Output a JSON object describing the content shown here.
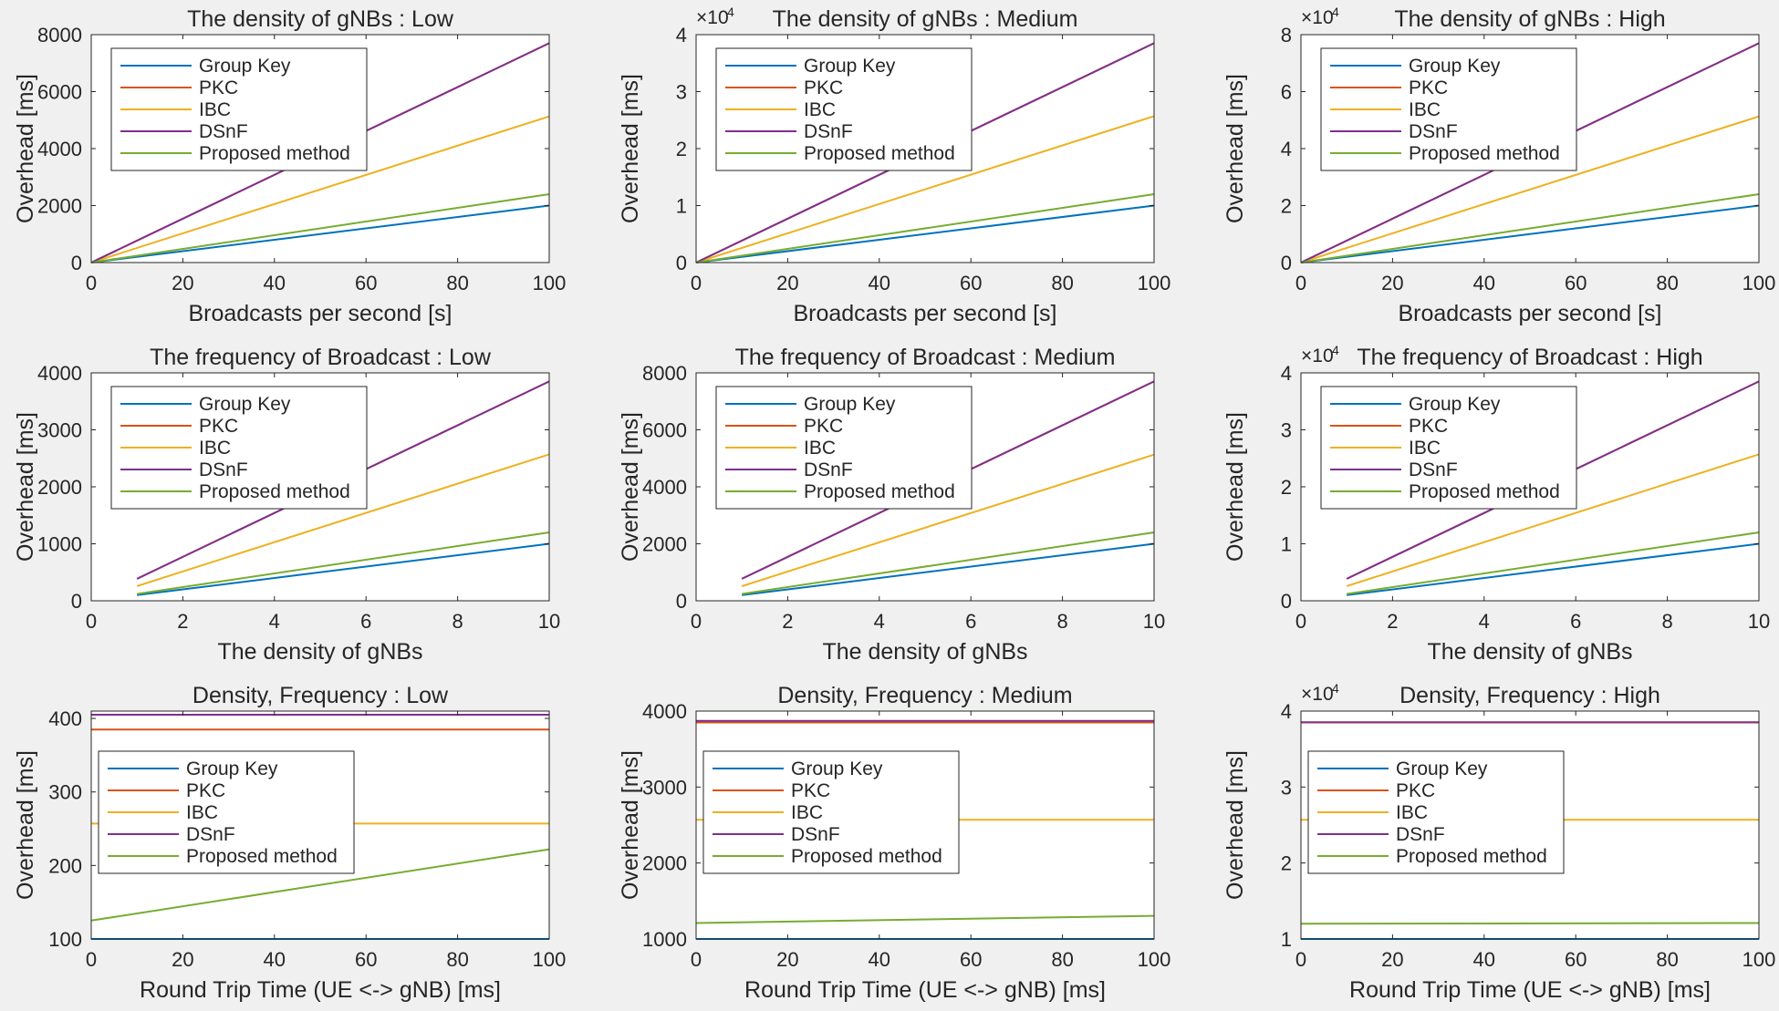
{
  "chart_data": [
    {
      "type": "line",
      "title": "The density of gNBs : Low",
      "xlabel": "Broadcasts per second [s]",
      "ylabel": "Overhead [ms]",
      "xlim": [
        0,
        100
      ],
      "ylim": [
        0,
        8000
      ],
      "xticks": [
        0,
        20,
        40,
        60,
        80,
        100
      ],
      "yticks": [
        0,
        2000,
        4000,
        6000,
        8000
      ],
      "ytick_labels": [
        "0",
        "2000",
        "4000",
        "6000",
        "8000"
      ],
      "multiplier": "",
      "legend": "top-left",
      "series": [
        {
          "name": "Group Key",
          "color": "#0072BD",
          "x": [
            0,
            100
          ],
          "y": [
            0,
            2000
          ]
        },
        {
          "name": "PKC",
          "color": "#D95319",
          "x": [
            0,
            100
          ],
          "y": [
            0,
            7700
          ]
        },
        {
          "name": "IBC",
          "color": "#EDB120",
          "x": [
            0,
            100
          ],
          "y": [
            0,
            5130
          ]
        },
        {
          "name": "DSnF",
          "color": "#7E2F8E",
          "x": [
            0,
            100
          ],
          "y": [
            0,
            7700
          ]
        },
        {
          "name": "Proposed method",
          "color": "#77AC30",
          "x": [
            0,
            100
          ],
          "y": [
            0,
            2400
          ]
        }
      ]
    },
    {
      "type": "line",
      "title": "The density of gNBs : Medium",
      "xlabel": "Broadcasts per second [s]",
      "ylabel": "Overhead [ms]",
      "xlim": [
        0,
        100
      ],
      "ylim": [
        0,
        40000
      ],
      "xticks": [
        0,
        20,
        40,
        60,
        80,
        100
      ],
      "yticks": [
        0,
        10000,
        20000,
        30000,
        40000
      ],
      "ytick_labels": [
        "0",
        "1",
        "2",
        "3",
        "4"
      ],
      "multiplier": "×10",
      "multiplier_exp": "4",
      "legend": "top-left",
      "series": [
        {
          "name": "Group Key",
          "color": "#0072BD",
          "x": [
            0,
            100
          ],
          "y": [
            0,
            10000
          ]
        },
        {
          "name": "PKC",
          "color": "#D95319",
          "x": [
            0,
            100
          ],
          "y": [
            0,
            38500
          ]
        },
        {
          "name": "IBC",
          "color": "#EDB120",
          "x": [
            0,
            100
          ],
          "y": [
            0,
            25700
          ]
        },
        {
          "name": "DSnF",
          "color": "#7E2F8E",
          "x": [
            0,
            100
          ],
          "y": [
            0,
            38500
          ]
        },
        {
          "name": "Proposed method",
          "color": "#77AC30",
          "x": [
            0,
            100
          ],
          "y": [
            0,
            12000
          ]
        }
      ]
    },
    {
      "type": "line",
      "title": "The density of gNBs : High",
      "xlabel": "Broadcasts per second [s]",
      "ylabel": "Overhead [ms]",
      "xlim": [
        0,
        100
      ],
      "ylim": [
        0,
        80000
      ],
      "xticks": [
        0,
        20,
        40,
        60,
        80,
        100
      ],
      "yticks": [
        0,
        20000,
        40000,
        60000,
        80000
      ],
      "ytick_labels": [
        "0",
        "2",
        "4",
        "6",
        "8"
      ],
      "multiplier": "×10",
      "multiplier_exp": "4",
      "legend": "top-left",
      "series": [
        {
          "name": "Group Key",
          "color": "#0072BD",
          "x": [
            0,
            100
          ],
          "y": [
            0,
            20000
          ]
        },
        {
          "name": "PKC",
          "color": "#D95319",
          "x": [
            0,
            100
          ],
          "y": [
            0,
            77000
          ]
        },
        {
          "name": "IBC",
          "color": "#EDB120",
          "x": [
            0,
            100
          ],
          "y": [
            0,
            51300
          ]
        },
        {
          "name": "DSnF",
          "color": "#7E2F8E",
          "x": [
            0,
            100
          ],
          "y": [
            0,
            77000
          ]
        },
        {
          "name": "Proposed method",
          "color": "#77AC30",
          "x": [
            0,
            100
          ],
          "y": [
            0,
            24000
          ]
        }
      ]
    },
    {
      "type": "line",
      "title": "The frequency of Broadcast : Low",
      "xlabel": "The density of gNBs",
      "ylabel": "Overhead [ms]",
      "xlim": [
        0,
        10
      ],
      "ylim": [
        0,
        4000
      ],
      "xticks": [
        0,
        2,
        4,
        6,
        8,
        10
      ],
      "yticks": [
        0,
        1000,
        2000,
        3000,
        4000
      ],
      "ytick_labels": [
        "0",
        "1000",
        "2000",
        "3000",
        "4000"
      ],
      "multiplier": "",
      "legend": "top-left",
      "series": [
        {
          "name": "Group Key",
          "color": "#0072BD",
          "x": [
            1,
            10
          ],
          "y": [
            100,
            1000
          ]
        },
        {
          "name": "PKC",
          "color": "#D95319",
          "x": [
            1,
            10
          ],
          "y": [
            385,
            3850
          ]
        },
        {
          "name": "IBC",
          "color": "#EDB120",
          "x": [
            1,
            10
          ],
          "y": [
            257,
            2570
          ]
        },
        {
          "name": "DSnF",
          "color": "#7E2F8E",
          "x": [
            1,
            10
          ],
          "y": [
            385,
            3850
          ]
        },
        {
          "name": "Proposed method",
          "color": "#77AC30",
          "x": [
            1,
            10
          ],
          "y": [
            120,
            1200
          ]
        }
      ]
    },
    {
      "type": "line",
      "title": "The frequency of Broadcast : Medium",
      "xlabel": "The density of gNBs",
      "ylabel": "Overhead [ms]",
      "xlim": [
        0,
        10
      ],
      "ylim": [
        0,
        8000
      ],
      "xticks": [
        0,
        2,
        4,
        6,
        8,
        10
      ],
      "yticks": [
        0,
        2000,
        4000,
        6000,
        8000
      ],
      "ytick_labels": [
        "0",
        "2000",
        "4000",
        "6000",
        "8000"
      ],
      "multiplier": "",
      "legend": "top-left",
      "series": [
        {
          "name": "Group Key",
          "color": "#0072BD",
          "x": [
            1,
            10
          ],
          "y": [
            200,
            2000
          ]
        },
        {
          "name": "PKC",
          "color": "#D95319",
          "x": [
            1,
            10
          ],
          "y": [
            770,
            7700
          ]
        },
        {
          "name": "IBC",
          "color": "#EDB120",
          "x": [
            1,
            10
          ],
          "y": [
            513,
            5130
          ]
        },
        {
          "name": "DSnF",
          "color": "#7E2F8E",
          "x": [
            1,
            10
          ],
          "y": [
            770,
            7700
          ]
        },
        {
          "name": "Proposed method",
          "color": "#77AC30",
          "x": [
            1,
            10
          ],
          "y": [
            240,
            2400
          ]
        }
      ]
    },
    {
      "type": "line",
      "title": "The frequency of Broadcast : High",
      "xlabel": "The density of gNBs",
      "ylabel": "Overhead [ms]",
      "xlim": [
        0,
        10
      ],
      "ylim": [
        0,
        40000
      ],
      "xticks": [
        0,
        2,
        4,
        6,
        8,
        10
      ],
      "yticks": [
        0,
        10000,
        20000,
        30000,
        40000
      ],
      "ytick_labels": [
        "0",
        "1",
        "2",
        "3",
        "4"
      ],
      "multiplier": "×10",
      "multiplier_exp": "4",
      "legend": "top-left",
      "series": [
        {
          "name": "Group Key",
          "color": "#0072BD",
          "x": [
            1,
            10
          ],
          "y": [
            1000,
            10000
          ]
        },
        {
          "name": "PKC",
          "color": "#D95319",
          "x": [
            1,
            10
          ],
          "y": [
            3850,
            38500
          ]
        },
        {
          "name": "IBC",
          "color": "#EDB120",
          "x": [
            1,
            10
          ],
          "y": [
            2570,
            25700
          ]
        },
        {
          "name": "DSnF",
          "color": "#7E2F8E",
          "x": [
            1,
            10
          ],
          "y": [
            3850,
            38500
          ]
        },
        {
          "name": "Proposed method",
          "color": "#77AC30",
          "x": [
            1,
            10
          ],
          "y": [
            1200,
            12000
          ]
        }
      ]
    },
    {
      "type": "line",
      "title": "Density, Frequency : Low",
      "xlabel": "Round Trip Time (UE <-> gNB) [ms]",
      "ylabel": "Overhead [ms]",
      "xlim": [
        0,
        100
      ],
      "ylim": [
        100,
        410
      ],
      "xticks": [
        0,
        20,
        40,
        60,
        80,
        100
      ],
      "yticks": [
        100,
        200,
        300,
        400
      ],
      "ytick_labels": [
        "100",
        "200",
        "300",
        "400"
      ],
      "multiplier": "",
      "legend": "middle-left",
      "series": [
        {
          "name": "Group Key",
          "color": "#0072BD",
          "x": [
            0,
            100
          ],
          "y": [
            100,
            100
          ]
        },
        {
          "name": "PKC",
          "color": "#D95319",
          "x": [
            0,
            100
          ],
          "y": [
            385,
            385
          ]
        },
        {
          "name": "IBC",
          "color": "#EDB120",
          "x": [
            0,
            100
          ],
          "y": [
            257,
            257
          ]
        },
        {
          "name": "DSnF",
          "color": "#7E2F8E",
          "x": [
            0,
            100
          ],
          "y": [
            405,
            405
          ]
        },
        {
          "name": "Proposed method",
          "color": "#77AC30",
          "x": [
            0,
            100
          ],
          "y": [
            125,
            222
          ]
        }
      ]
    },
    {
      "type": "line",
      "title": "Density, Frequency : Medium",
      "xlabel": "Round Trip Time (UE <-> gNB) [ms]",
      "ylabel": "Overhead [ms]",
      "xlim": [
        0,
        100
      ],
      "ylim": [
        1000,
        4000
      ],
      "xticks": [
        0,
        20,
        40,
        60,
        80,
        100
      ],
      "yticks": [
        1000,
        2000,
        3000,
        4000
      ],
      "ytick_labels": [
        "1000",
        "2000",
        "3000",
        "4000"
      ],
      "multiplier": "",
      "legend": "middle-left",
      "series": [
        {
          "name": "Group Key",
          "color": "#0072BD",
          "x": [
            0,
            100
          ],
          "y": [
            1000,
            1000
          ]
        },
        {
          "name": "PKC",
          "color": "#D95319",
          "x": [
            0,
            100
          ],
          "y": [
            3850,
            3850
          ]
        },
        {
          "name": "IBC",
          "color": "#EDB120",
          "x": [
            0,
            100
          ],
          "y": [
            2570,
            2570
          ]
        },
        {
          "name": "DSnF",
          "color": "#7E2F8E",
          "x": [
            0,
            100
          ],
          "y": [
            3870,
            3870
          ]
        },
        {
          "name": "Proposed method",
          "color": "#77AC30",
          "x": [
            0,
            100
          ],
          "y": [
            1210,
            1305
          ]
        }
      ]
    },
    {
      "type": "line",
      "title": "Density, Frequency : High",
      "xlabel": "Round Trip Time (UE <-> gNB) [ms]",
      "ylabel": "Overhead [ms]",
      "xlim": [
        0,
        100
      ],
      "ylim": [
        10000,
        40000
      ],
      "xticks": [
        0,
        20,
        40,
        60,
        80,
        100
      ],
      "yticks": [
        10000,
        20000,
        30000,
        40000
      ],
      "ytick_labels": [
        "1",
        "2",
        "3",
        "4"
      ],
      "multiplier": "×10",
      "multiplier_exp": "4",
      "legend": "middle-left",
      "series": [
        {
          "name": "Group Key",
          "color": "#0072BD",
          "x": [
            0,
            100
          ],
          "y": [
            10000,
            10000
          ]
        },
        {
          "name": "PKC",
          "color": "#D95319",
          "x": [
            0,
            100
          ],
          "y": [
            38500,
            38500
          ]
        },
        {
          "name": "IBC",
          "color": "#EDB120",
          "x": [
            0,
            100
          ],
          "y": [
            25700,
            25700
          ]
        },
        {
          "name": "DSnF",
          "color": "#7E2F8E",
          "x": [
            0,
            100
          ],
          "y": [
            38520,
            38520
          ]
        },
        {
          "name": "Proposed method",
          "color": "#77AC30",
          "x": [
            0,
            100
          ],
          "y": [
            12000,
            12100
          ]
        }
      ]
    }
  ]
}
